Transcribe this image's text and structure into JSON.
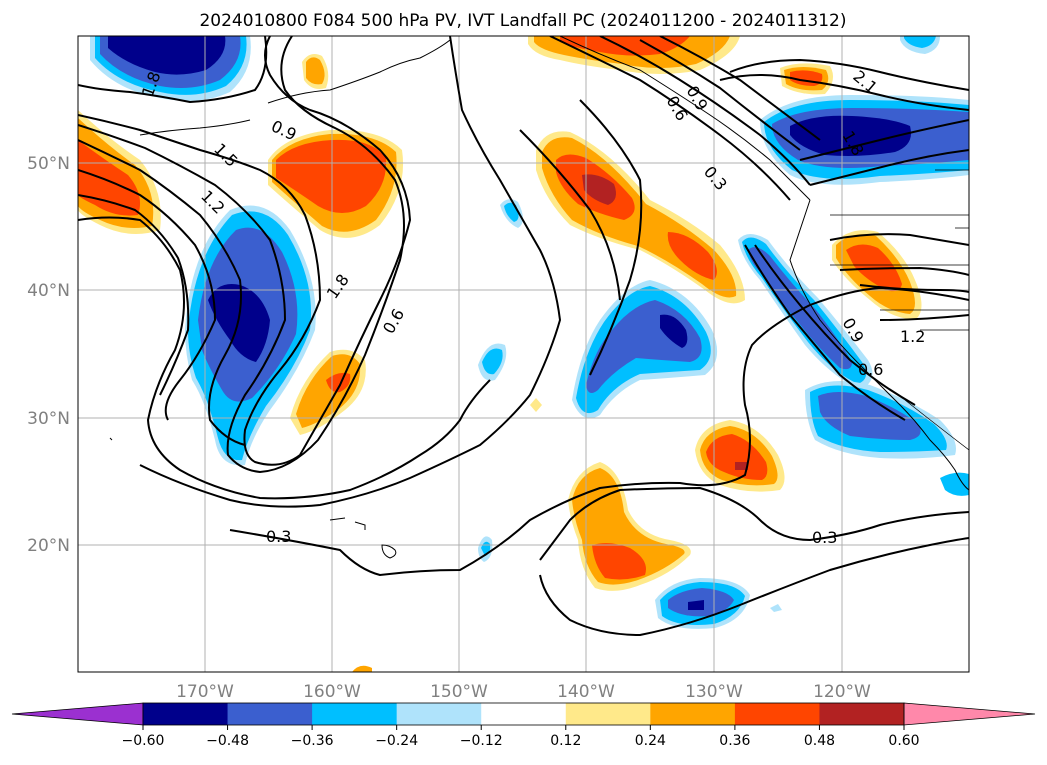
{
  "title": "2024010800 F084 500 hPa PV, IVT Landfall PC (2024011200 - 2024011312)",
  "lat_ticks": [
    "50°N",
    "40°N",
    "30°N",
    "20°N"
  ],
  "lon_ticks": [
    "170°W",
    "160°W",
    "150°W",
    "140°W",
    "130°W",
    "120°W"
  ],
  "colorbar": {
    "tick_labels": [
      "−0.60",
      "−0.48",
      "−0.36",
      "−0.24",
      "−0.12",
      "0.12",
      "0.24",
      "0.36",
      "0.48",
      "0.60"
    ],
    "colors": [
      "#9b30d0",
      "#00008b",
      "#3b5fcf",
      "#00bfff",
      "#afe3fb",
      "#ffffff",
      "#ffe98a",
      "#ffa500",
      "#ff4500",
      "#b22222",
      "#ff88aa"
    ]
  },
  "contour_labels": [
    "1.8",
    "1.5",
    "1.2",
    "0.9",
    "1.8",
    "0.6",
    "0.3",
    "0.3",
    "0.3",
    "0.6",
    "0.9",
    "2.1",
    "0.9",
    "0.6",
    "1.2",
    "1.8"
  ],
  "chart_data": {
    "type": "map",
    "extent": {
      "lon": [
        -180,
        -110
      ],
      "lat": [
        10,
        60
      ]
    },
    "fill_variable": "IVT Landfall PC",
    "contour_variable": "500 hPa PV",
    "fill_levels": [
      -0.6,
      -0.48,
      -0.36,
      -0.24,
      -0.12,
      0.12,
      0.24,
      0.36,
      0.48,
      0.6
    ],
    "contour_levels": [
      0.3,
      0.6,
      0.9,
      1.2,
      1.5,
      1.8,
      2.1
    ],
    "grid": true
  }
}
